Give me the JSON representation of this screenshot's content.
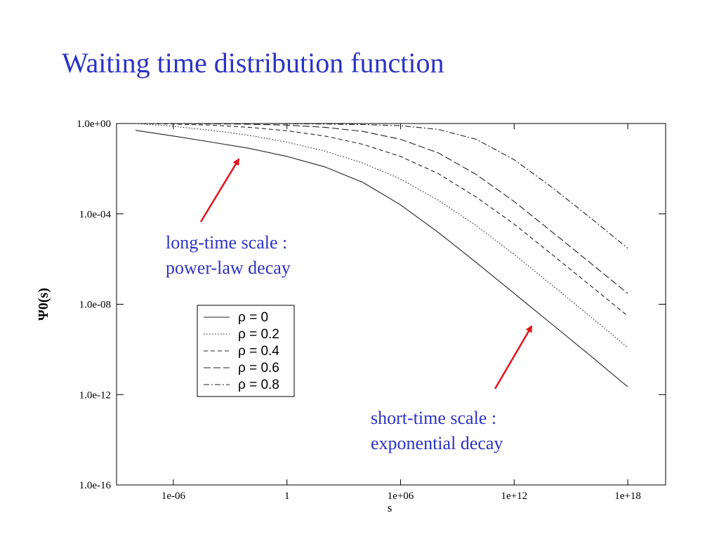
{
  "slide": {
    "title": "Waiting time distribution function"
  },
  "annotations": {
    "long_time": {
      "line1": "long-time scale :",
      "line2": "power-law decay"
    },
    "short_time": {
      "line1": "short-time scale :",
      "line2": "exponential decay"
    }
  },
  "colors": {
    "title": "#2c33c4",
    "annotation_text": "#2c33c4",
    "arrow": "#e0141a",
    "series": "#222222",
    "axis": "#000000"
  },
  "chart_data": {
    "type": "line",
    "title": "",
    "xlabel": "s",
    "ylabel": "Ψ0(s)",
    "x_scale": "log",
    "y_scale": "log",
    "xlim": [
      1e-09,
      1e+20
    ],
    "ylim": [
      1e-16,
      1
    ],
    "grid": false,
    "legend_position": "lower-left",
    "x_ticks": [
      {
        "value": 1e-06,
        "label": "1e-06"
      },
      {
        "value": 1,
        "label": "1"
      },
      {
        "value": 1000000.0,
        "label": "1e+06"
      },
      {
        "value": 1000000000000.0,
        "label": "1e+12"
      },
      {
        "value": 1e+18,
        "label": "1e+18"
      }
    ],
    "y_ticks": [
      {
        "value": 1,
        "label": "1.0e+00"
      },
      {
        "value": 0.0001,
        "label": "1.0e-04"
      },
      {
        "value": 1e-08,
        "label": "1.0e-08"
      },
      {
        "value": 1e-12,
        "label": "1.0e-12"
      },
      {
        "value": 1e-16,
        "label": "1.0e-16"
      }
    ],
    "series": [
      {
        "name": "ρ = 0",
        "style": "solid",
        "x": [
          1e-08,
          1e-06,
          0.0001,
          0.01,
          1,
          100.0,
          10000.0,
          1000000.0,
          100000000.0,
          10000000000.0,
          1000000000000.0,
          100000000000000.0,
          1e+16,
          1e+18
        ],
        "y": [
          0.5,
          0.28,
          0.15,
          0.08,
          0.035,
          0.012,
          0.0025,
          0.00025,
          1.5e-05,
          7e-07,
          3e-08,
          1.3e-09,
          5.5e-11,
          2.2e-12
        ]
      },
      {
        "name": "ρ = 0.2",
        "style": "dotted",
        "x": [
          1e-08,
          1e-06,
          0.0001,
          0.01,
          1,
          100.0,
          10000.0,
          1000000.0,
          100000000.0,
          10000000000.0,
          1000000000000.0,
          100000000000000.0,
          1e+16,
          1e+18
        ],
        "y": [
          1.0,
          0.75,
          0.5,
          0.3,
          0.15,
          0.06,
          0.018,
          0.0035,
          0.0004,
          3e-05,
          1.6e-06,
          7e-08,
          3e-09,
          1.2e-10
        ]
      },
      {
        "name": "ρ = 0.4",
        "style": "dashed",
        "x": [
          1e-08,
          1e-06,
          0.0001,
          0.01,
          1,
          100.0,
          10000.0,
          1000000.0,
          100000000.0,
          10000000000.0,
          1000000000000.0,
          100000000000000.0,
          1e+16,
          1e+18
        ],
        "y": [
          1.0,
          0.95,
          0.85,
          0.68,
          0.48,
          0.28,
          0.12,
          0.035,
          0.006,
          0.00055,
          3.5e-05,
          1.6e-06,
          7e-08,
          3e-09
        ]
      },
      {
        "name": "ρ = 0.6",
        "style": "longdash",
        "x": [
          1e-08,
          1e-06,
          0.0001,
          0.01,
          1,
          100.0,
          10000.0,
          1000000.0,
          100000000.0,
          10000000000.0,
          1000000000000.0,
          100000000000000.0,
          1e+16,
          1e+18
        ],
        "y": [
          1.0,
          1.0,
          0.97,
          0.93,
          0.85,
          0.68,
          0.45,
          0.2,
          0.05,
          0.0055,
          0.00035,
          1.6e-05,
          7e-07,
          3e-08
        ]
      },
      {
        "name": "ρ = 0.8",
        "style": "dashdot",
        "x": [
          1e-08,
          1e-06,
          0.0001,
          0.01,
          1,
          100.0,
          10000.0,
          1000000.0,
          100000000.0,
          10000000000.0,
          1000000000000.0,
          100000000000000.0,
          1e+16,
          1e+18
        ],
        "y": [
          1.0,
          1.0,
          1.0,
          1.0,
          0.98,
          0.95,
          0.9,
          0.8,
          0.55,
          0.2,
          0.025,
          0.0015,
          7e-05,
          3e-06
        ]
      }
    ]
  }
}
